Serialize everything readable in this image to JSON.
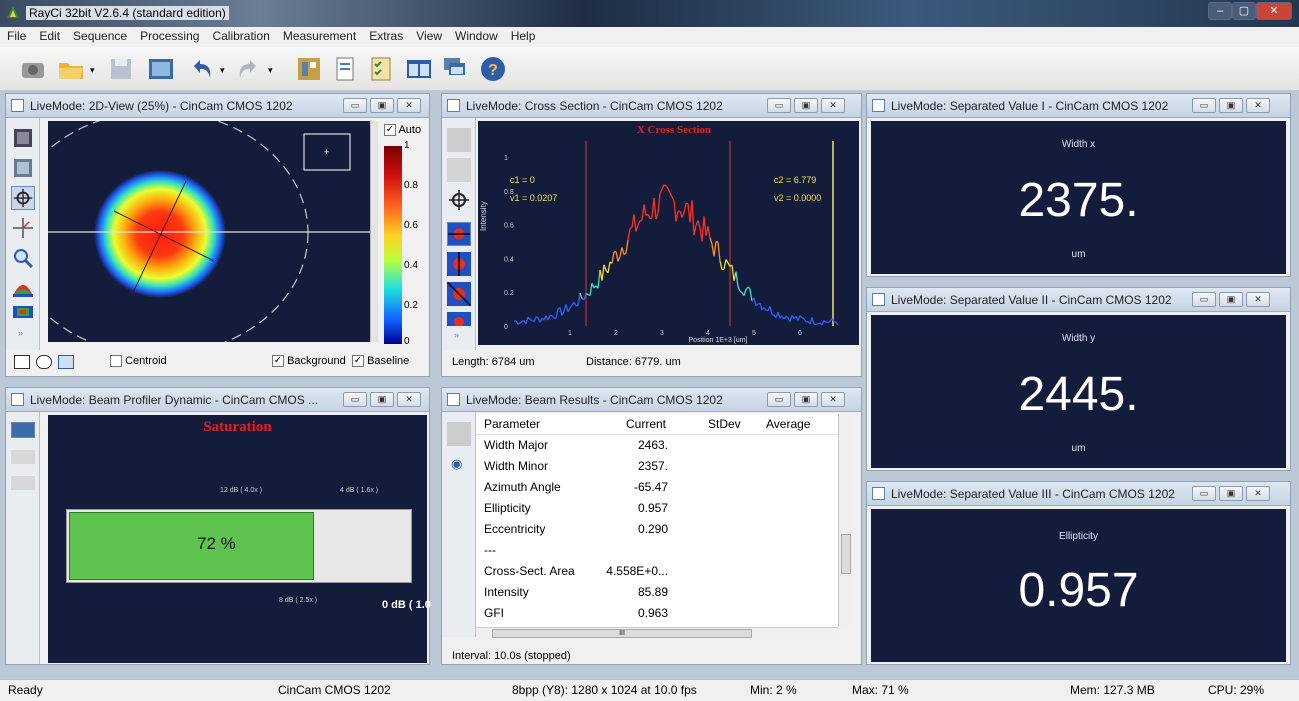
{
  "window": {
    "title": "RayCi 32bit V2.6.4 (standard edition)",
    "min_glyph": "–",
    "max_glyph": "▢",
    "close_glyph": "✕"
  },
  "menu": [
    "File",
    "Edit",
    "Sequence",
    "Processing",
    "Calibration",
    "Measurement",
    "Extras",
    "View",
    "Window",
    "Help"
  ],
  "panels": {
    "view2d": {
      "title": "LiveMode: 2D-View (25%) - CinCam CMOS 1202",
      "auto_label": "Auto",
      "auto_checked": "✓",
      "scale_labels": [
        "1",
        "0.8",
        "0.6",
        "0.4",
        "0.2",
        "0"
      ],
      "centroid_label": "Centroid",
      "background_label": "Background",
      "baseline_label": "Baseline"
    },
    "cross": {
      "title": "LiveMode: Cross Section - CinCam CMOS 1202",
      "chart_title": "X Cross Section",
      "c1": "c1 = 0",
      "v1": "v1 = 0.0207",
      "c2": "c2 = 6.779",
      "v2": "v2 = 0.0000",
      "ylabel": "Intensity",
      "xlabel": "Position 1E+3 [um]",
      "yticks": [
        "1",
        "0.8",
        "0.6",
        "0.4",
        "0.2",
        "0"
      ],
      "xticks": [
        "1",
        "2",
        "3",
        "4",
        "5",
        "6"
      ],
      "length": "Length: 6784 um",
      "distance": "Distance: 6779. um"
    },
    "saturation": {
      "title": "LiveMode: Beam Profiler Dynamic - CinCam CMOS ...",
      "heading": "Saturation",
      "percent_label": "72 %",
      "level_fraction": 0.72,
      "top_label_1": "12 dB ( 4.0x )",
      "top_label_2": "4 dB ( 1.6x )",
      "bottom_label": "8 dB ( 2.5x )",
      "zero_label": "0 dB ( 1.0"
    },
    "results": {
      "title": "LiveMode: Beam Results - CinCam CMOS 1202",
      "headers": [
        "Parameter",
        "Current",
        "StDev",
        "Average"
      ],
      "rows": [
        {
          "p": "Width Major",
          "c": "2463."
        },
        {
          "p": "Width Minor",
          "c": "2357."
        },
        {
          "p": "Azimuth Angle",
          "c": "-65.47"
        },
        {
          "p": "Ellipticity",
          "c": "0.957"
        },
        {
          "p": "Eccentricity",
          "c": "0.290"
        },
        {
          "p": "---",
          "c": ""
        },
        {
          "p": "Cross-Sect. Area",
          "c": "4.558E+0..."
        },
        {
          "p": "Intensity",
          "c": "85.89"
        },
        {
          "p": "GFI",
          "c": "0.963"
        }
      ],
      "interval": "Interval: 10.0s (stopped)",
      "scroll_mark": "III"
    },
    "sv1": {
      "title": "LiveMode: Separated Value I - CinCam CMOS 1202",
      "label": "Width x",
      "value": "2375.",
      "unit": "um"
    },
    "sv2": {
      "title": "LiveMode: Separated Value II - CinCam CMOS 1202",
      "label": "Width y",
      "value": "2445.",
      "unit": "um"
    },
    "sv3": {
      "title": "LiveMode: Separated Value III - CinCam CMOS 1202",
      "label": "Ellipticity",
      "value": "0.957"
    }
  },
  "status": {
    "ready": "Ready",
    "camera": "CinCam CMOS 1202",
    "format": "8bpp (Y8): 1280 x 1024 at 10.0 fps",
    "min": "Min:  2 %",
    "max": "Max: 71 %",
    "mem": "Mem: 127.3 MB",
    "cpu": "CPU: 29%"
  },
  "colors": {
    "plot_bg": "#141c3c",
    "sat_bar": "#5fc34f",
    "chart_title": "#e02020"
  }
}
